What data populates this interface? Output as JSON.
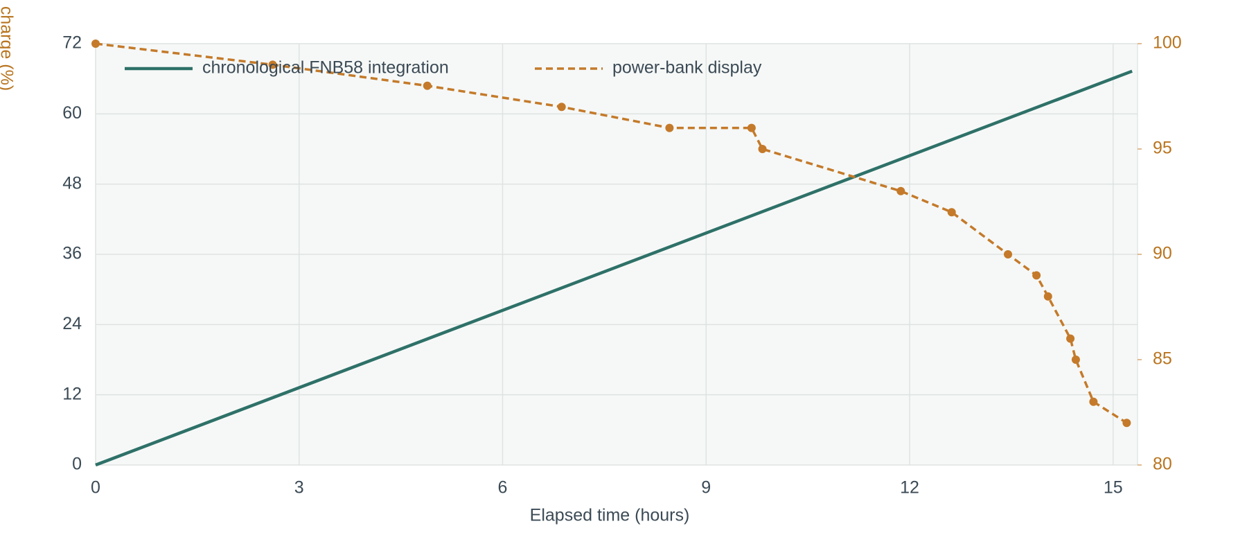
{
  "chart_data": {
    "type": "line",
    "xlabel": "Elapsed time (hours)",
    "y2label": "charge (%)",
    "xlim": [
      0,
      15.36
    ],
    "xticks": [
      0,
      3,
      6,
      9,
      12,
      15
    ],
    "ylim": [
      0,
      72
    ],
    "yticks": [
      0,
      12,
      24,
      36,
      48,
      60,
      72
    ],
    "y2lim": [
      80,
      100
    ],
    "y2ticks": [
      80,
      85,
      90,
      95,
      100
    ],
    "grid": true,
    "legend": "upper left",
    "series": [
      {
        "name": "chronological FNB58 integration",
        "color": "#2e7168",
        "x": [
          0,
          15.28
        ],
        "values": [
          0,
          67.3
        ]
      },
      {
        "name": "power-bank display",
        "color": "#c47a2a",
        "axis": "y2",
        "dashed": true,
        "x": [
          0,
          2.61,
          4.89,
          6.87,
          8.46,
          9.67,
          9.83,
          11.87,
          12.62,
          13.45,
          13.87,
          14.04,
          14.37,
          14.45,
          14.71,
          15.2
        ],
        "values": [
          100,
          99,
          98,
          97,
          96,
          96,
          95,
          93,
          92,
          90,
          89,
          88,
          86,
          85,
          83,
          82
        ]
      }
    ]
  }
}
